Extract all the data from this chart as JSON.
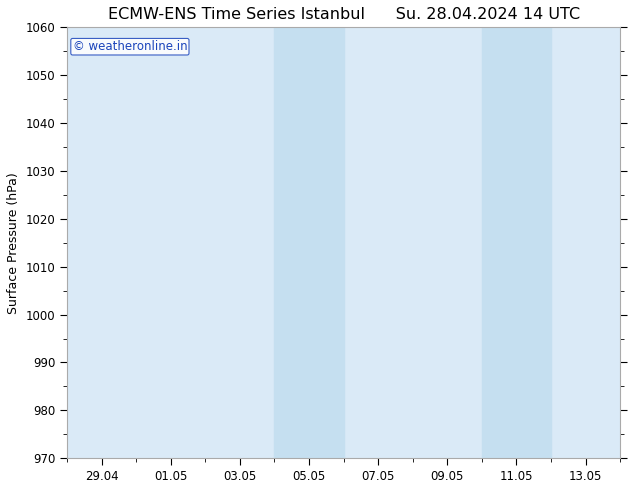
{
  "title_left": "ECMW-ENS Time Series Istanbul",
  "title_right": "Su. 28.04.2024 14 UTC",
  "ylabel": "Surface Pressure (hPa)",
  "ylim": [
    970,
    1060
  ],
  "yticks": [
    970,
    980,
    990,
    1000,
    1010,
    1020,
    1030,
    1040,
    1050,
    1060
  ],
  "xtick_labels": [
    "29.04",
    "01.05",
    "03.05",
    "05.05",
    "07.05",
    "09.05",
    "11.05",
    "13.05"
  ],
  "xtick_positions": [
    1,
    3,
    5,
    7,
    9,
    11,
    13,
    15
  ],
  "background_color": "#ffffff",
  "plot_bg_color": "#daeaf7",
  "shaded_bands": [
    {
      "x_start": 6,
      "x_end": 8
    },
    {
      "x_start": 12,
      "x_end": 14
    }
  ],
  "shaded_color": "#c5dff0",
  "watermark_text": "© weatheronline.in",
  "watermark_color": "#1a44bb",
  "title_fontsize": 11.5,
  "axis_label_fontsize": 9,
  "tick_fontsize": 8.5,
  "xlim": [
    0,
    16
  ]
}
